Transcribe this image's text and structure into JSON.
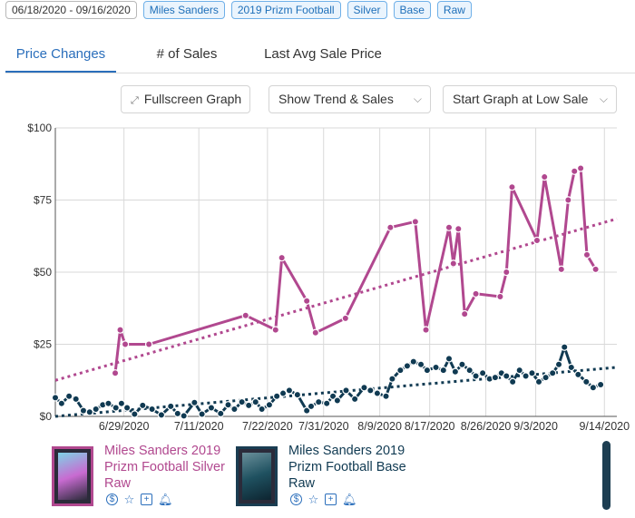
{
  "filters": {
    "date_range": "06/18/2020 - 09/16/2020",
    "tags": [
      "Miles Sanders",
      "2019 Prizm Football",
      "Silver",
      "Base",
      "Raw"
    ]
  },
  "tabs": [
    "Price Changes",
    "# of Sales",
    "Last Avg Sale Price"
  ],
  "active_tab": "Price Changes",
  "controls": {
    "fullscreen_label": "Fullscreen Graph",
    "trend_select": "Show Trend & Sales",
    "start_select": "Start Graph at Low Sale"
  },
  "chart_data": {
    "type": "line",
    "title": "",
    "xlabel": "",
    "ylabel": "",
    "ylim": [
      0,
      100
    ],
    "xlim": [
      0,
      90
    ],
    "y_ticks": [
      {
        "value": 0,
        "label": "$0"
      },
      {
        "value": 25,
        "label": "$25"
      },
      {
        "value": 50,
        "label": "$50"
      },
      {
        "value": 75,
        "label": "$75"
      },
      {
        "value": 100,
        "label": "$100"
      }
    ],
    "x_ticks": [
      {
        "day": 11,
        "label": "6/29/2020"
      },
      {
        "day": 23,
        "label": "7/11/2020"
      },
      {
        "day": 34,
        "label": "7/22/2020"
      },
      {
        "day": 43,
        "label": "7/31/2020"
      },
      {
        "day": 52,
        "label": "8/9/2020"
      },
      {
        "day": 60,
        "label": "8/17/2020"
      },
      {
        "day": 69,
        "label": "8/26/2020"
      },
      {
        "day": 77,
        "label": "9/3/2020"
      },
      {
        "day": 88,
        "label": "9/14/2020"
      }
    ],
    "x_unit": "days since 06/18/2020",
    "grid": true,
    "series": [
      {
        "name": "Miles Sanders 2019 Prizm Football Silver Raw",
        "color": "#b1488f",
        "trend": [
          12.5,
          68.5
        ],
        "points": [
          [
            9.6,
            15
          ],
          [
            10.4,
            30
          ],
          [
            11.2,
            25
          ],
          [
            15,
            25
          ],
          [
            30.5,
            35
          ],
          [
            35.3,
            30
          ],
          [
            36.3,
            55
          ],
          [
            40.3,
            40
          ],
          [
            41.7,
            29
          ],
          [
            46.5,
            34
          ],
          [
            53.7,
            65.5
          ],
          [
            57.7,
            67.5
          ],
          [
            59.4,
            30
          ],
          [
            63.1,
            65.5
          ],
          [
            63.8,
            53
          ],
          [
            64.6,
            65
          ],
          [
            65.6,
            35.5
          ],
          [
            67.4,
            42.5
          ],
          [
            71.3,
            41.5
          ],
          [
            72.3,
            50
          ],
          [
            73.2,
            79.5
          ],
          [
            77.2,
            61
          ],
          [
            78.4,
            83
          ],
          [
            81.1,
            51
          ],
          [
            82.2,
            75
          ],
          [
            83.2,
            85
          ],
          [
            84.2,
            86
          ],
          [
            85.2,
            56
          ],
          [
            86.6,
            51
          ]
        ]
      },
      {
        "name": "Miles Sanders 2019 Prizm Football Base Raw",
        "color": "#103a52",
        "trend": [
          0,
          17
        ],
        "points": [
          [
            0,
            6.5
          ],
          [
            1,
            4.5
          ],
          [
            2.2,
            7
          ],
          [
            3.3,
            6
          ],
          [
            4.5,
            2
          ],
          [
            5.5,
            1.5
          ],
          [
            6.5,
            2.5
          ],
          [
            7.6,
            4
          ],
          [
            8.5,
            4.5
          ],
          [
            9.7,
            3
          ],
          [
            10.6,
            4.5
          ],
          [
            11.5,
            3
          ],
          [
            12.7,
            0.8
          ],
          [
            14,
            3.8
          ],
          [
            15.5,
            2.5
          ],
          [
            17,
            0.5
          ],
          [
            18.5,
            3.5
          ],
          [
            19.6,
            1
          ],
          [
            20.6,
            0.2
          ],
          [
            22.3,
            4.8
          ],
          [
            23.5,
            0.8
          ],
          [
            25,
            3
          ],
          [
            26.5,
            1
          ],
          [
            27.7,
            4
          ],
          [
            28.7,
            2.5
          ],
          [
            29.9,
            5
          ],
          [
            31,
            3.8
          ],
          [
            32.1,
            5
          ],
          [
            33.1,
            2.5
          ],
          [
            34.3,
            4
          ],
          [
            35.5,
            7
          ],
          [
            36.5,
            8
          ],
          [
            37.5,
            9
          ],
          [
            38.8,
            7.5
          ],
          [
            40.3,
            2
          ],
          [
            41,
            3.5
          ],
          [
            42.2,
            5
          ],
          [
            43.5,
            4.5
          ],
          [
            44.5,
            7
          ],
          [
            45.2,
            5.5
          ],
          [
            46.6,
            9
          ],
          [
            48,
            6
          ],
          [
            49.5,
            10
          ],
          [
            50.5,
            9
          ],
          [
            51.6,
            8
          ],
          [
            53,
            7
          ],
          [
            54,
            13
          ],
          [
            55.3,
            16
          ],
          [
            56.4,
            17.5
          ],
          [
            57.4,
            19
          ],
          [
            58.6,
            18
          ],
          [
            59.6,
            16
          ],
          [
            61,
            17
          ],
          [
            62.2,
            16
          ],
          [
            63.1,
            20
          ],
          [
            64.1,
            15.5
          ],
          [
            65.2,
            18
          ],
          [
            66.4,
            16
          ],
          [
            67.4,
            14
          ],
          [
            68.5,
            15
          ],
          [
            69.6,
            13
          ],
          [
            70.5,
            13.5
          ],
          [
            71.5,
            15
          ],
          [
            72.3,
            14
          ],
          [
            73.3,
            12
          ],
          [
            74.4,
            16
          ],
          [
            75.4,
            14
          ],
          [
            76.4,
            15
          ],
          [
            77.5,
            12
          ],
          [
            78.6,
            13.5
          ],
          [
            79.7,
            15
          ],
          [
            80.7,
            18
          ],
          [
            81.6,
            24
          ],
          [
            82.7,
            17
          ],
          [
            83.8,
            14.5
          ],
          [
            85.1,
            12
          ],
          [
            86.2,
            10
          ],
          [
            87.4,
            11
          ]
        ]
      }
    ]
  },
  "cards": [
    {
      "title_lines": [
        "Miles Sanders 2019",
        "Prizm Football Silver",
        "Raw"
      ],
      "icons": [
        "dollar-icon",
        "star-icon",
        "plus-icon",
        "bell-icon"
      ]
    },
    {
      "title_lines": [
        "Miles Sanders 2019",
        "Prizm Football Base",
        "Raw"
      ],
      "icons": [
        "dollar-icon",
        "star-icon",
        "plus-icon",
        "bell-icon"
      ]
    }
  ]
}
